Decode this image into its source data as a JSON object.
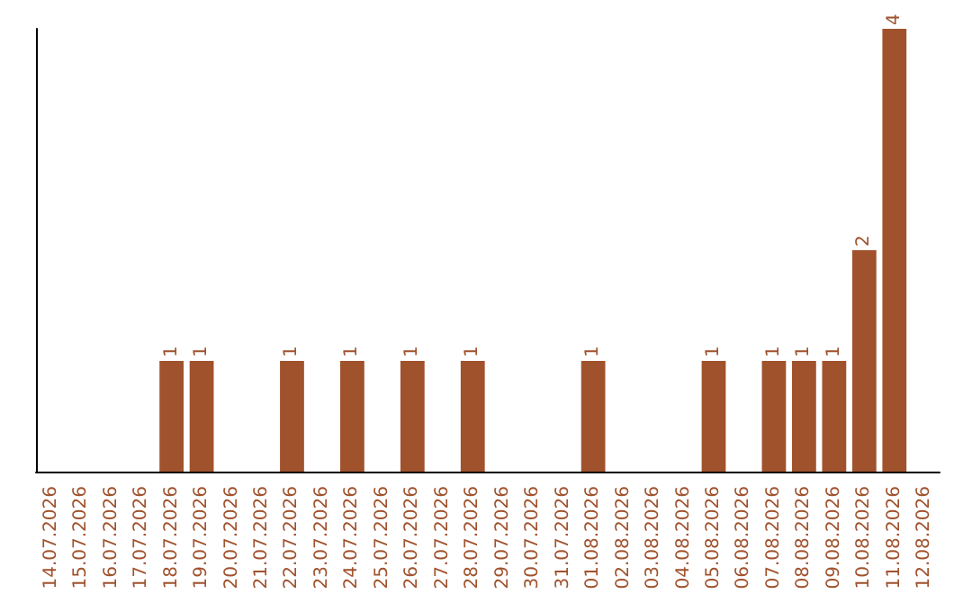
{
  "chart_data": {
    "type": "bar",
    "categories": [
      "14.07.2026",
      "15.07.2026",
      "16.07.2026",
      "17.07.2026",
      "18.07.2026",
      "19.07.2026",
      "20.07.2026",
      "21.07.2026",
      "22.07.2026",
      "23.07.2026",
      "24.07.2026",
      "25.07.2026",
      "26.07.2026",
      "27.07.2026",
      "28.07.2026",
      "29.07.2026",
      "30.07.2026",
      "31.07.2026",
      "01.08.2026",
      "02.08.2026",
      "03.08.2026",
      "04.08.2026",
      "05.08.2026",
      "06.08.2026",
      "07.08.2026",
      "08.08.2026",
      "09.08.2026",
      "10.08.2026",
      "11.08.2026",
      "12.08.2026"
    ],
    "values": [
      0,
      0,
      0,
      0,
      1,
      1,
      0,
      0,
      1,
      0,
      1,
      0,
      1,
      0,
      1,
      0,
      0,
      0,
      1,
      0,
      0,
      0,
      1,
      0,
      1,
      1,
      1,
      2,
      4,
      0
    ],
    "value_labels": [
      null,
      null,
      null,
      null,
      "1",
      "1",
      null,
      null,
      "1",
      null,
      "1",
      null,
      "1",
      null,
      "1",
      null,
      null,
      null,
      "1",
      null,
      null,
      null,
      "1",
      null,
      "1",
      "1",
      "1",
      "2",
      "4",
      null
    ],
    "color": "#a0522d",
    "tick_labels": "x"
  }
}
